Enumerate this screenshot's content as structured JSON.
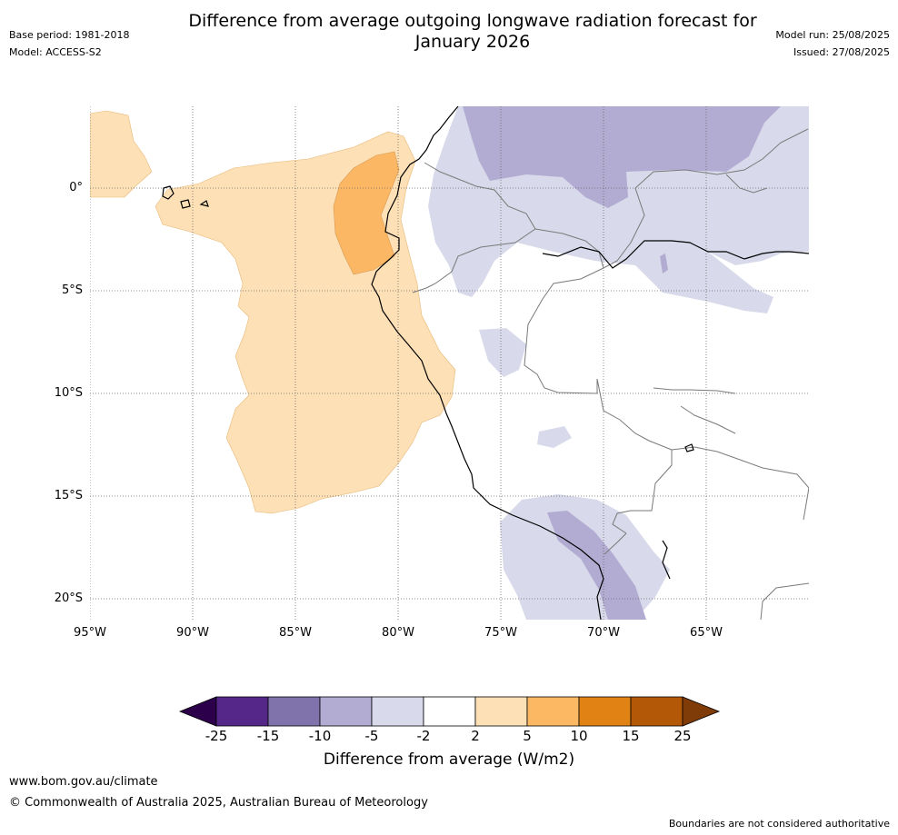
{
  "header": {
    "title_line1": "Difference from average outgoing longwave radiation forecast for",
    "title_line2": "January 2026",
    "base_period": "Base period: 1981-2018",
    "model": "Model: ACCESS-S2",
    "model_run": "Model run: 25/08/2025",
    "issued": "Issued: 27/08/2025"
  },
  "map": {
    "lat_labels": [
      "0°",
      "5°S",
      "10°S",
      "15°S",
      "20°S"
    ],
    "lon_labels": [
      "95°W",
      "90°W",
      "85°W",
      "80°W",
      "75°W",
      "70°W",
      "65°W"
    ],
    "colors": {
      "ocean": "#ffffff",
      "orange_light": "#fde0b6",
      "orange_mid": "#fbb763",
      "purple_light": "#d8d9ea",
      "purple_mid": "#b2abd2",
      "coast": "#000000",
      "border": "#7a7a7a"
    }
  },
  "colorbar": {
    "title": "Difference from average (W/m2)",
    "tick_labels": [
      "-25",
      "-15",
      "-10",
      "-5",
      "-2",
      "2",
      "5",
      "10",
      "15",
      "25"
    ],
    "colors": [
      "#2d004b",
      "#542788",
      "#8073ac",
      "#b2abd2",
      "#d8daeb",
      "#ffffff",
      "#fee0b6",
      "#fdb863",
      "#e08214",
      "#b35806",
      "#7f3b08"
    ]
  },
  "footer": {
    "website": "www.bom.gov.au/climate",
    "copyright": "© Commonwealth of Australia 2025, Australian Bureau of Meteorology",
    "disclaimer": "Boundaries are not considered authoritative"
  }
}
